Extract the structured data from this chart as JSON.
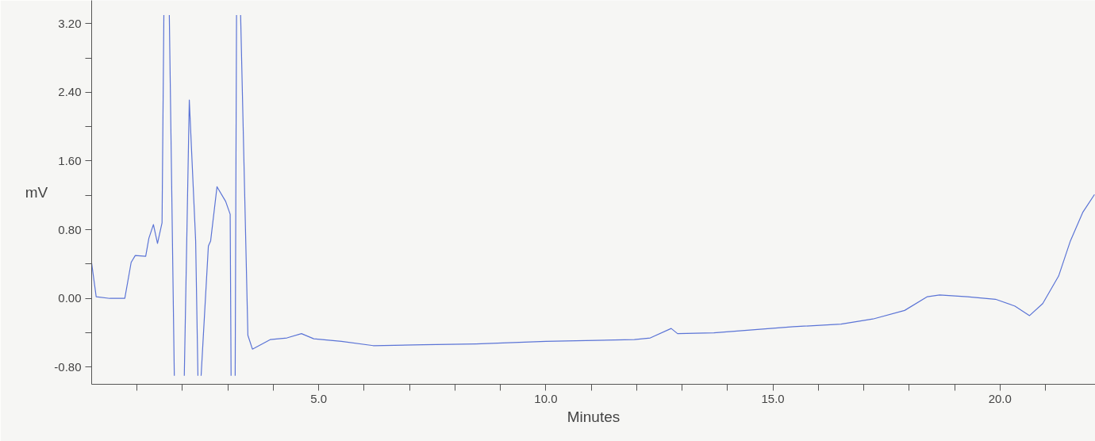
{
  "chart_data": {
    "type": "line",
    "xlabel": "Minutes",
    "ylabel": "mV",
    "x": [
      0,
      0.1,
      0.4,
      0.73,
      0.87,
      0.96,
      1.19,
      1.26,
      1.36,
      1.45,
      1.55,
      1.59,
      1.65,
      1.71,
      1.82,
      1.93,
      2.04,
      2.15,
      2.29,
      2.34,
      2.37,
      2.41,
      2.57,
      2.62,
      2.76,
      2.95,
      3.05,
      3.07,
      3.11,
      3.16,
      3.19,
      3.23,
      3.28,
      3.44,
      3.54,
      3.58,
      3.93,
      4.3,
      4.62,
      4.89,
      5.5,
      6.2,
      7.3,
      8.46,
      10.0,
      11.95,
      12.3,
      12.76,
      12.9,
      13.7,
      15.45,
      16.5,
      17.2,
      17.9,
      18.4,
      18.67,
      19.28,
      19.9,
      20.33,
      20.65,
      20.94,
      21.29,
      21.55,
      21.82,
      22.08
    ],
    "series": [
      {
        "color": "#5b74d6",
        "values": [
          0.41,
          0.02,
          0.0,
          0.0,
          0.42,
          0.5,
          0.49,
          0.7,
          0.86,
          0.64,
          0.88,
          3.3,
          null,
          3.3,
          -0.9,
          null,
          -0.9,
          2.31,
          0.67,
          -0.9,
          null,
          -0.9,
          0.61,
          0.67,
          1.3,
          1.13,
          0.98,
          -0.9,
          null,
          -0.9,
          3.3,
          null,
          3.3,
          -0.43,
          -0.59,
          -0.58,
          -0.48,
          -0.46,
          -0.41,
          -0.47,
          -0.5,
          -0.55,
          -0.54,
          -0.53,
          -0.5,
          -0.48,
          -0.46,
          -0.35,
          -0.41,
          -0.4,
          -0.33,
          -0.3,
          -0.24,
          -0.14,
          0.02,
          0.04,
          0.02,
          -0.01,
          -0.09,
          -0.2,
          -0.06,
          0.26,
          0.67,
          1.0,
          1.21
        ]
      }
    ],
    "xlim": [
      0,
      22.1
    ],
    "ylim": [
      -1.0,
      3.47
    ],
    "xticks": [
      {
        "value": 1,
        "label": null
      },
      {
        "value": 2,
        "label": null
      },
      {
        "value": 3,
        "label": null
      },
      {
        "value": 4,
        "label": null
      },
      {
        "value": 5,
        "label": "5.0"
      },
      {
        "value": 6,
        "label": null
      },
      {
        "value": 7,
        "label": null
      },
      {
        "value": 8,
        "label": null
      },
      {
        "value": 9,
        "label": null
      },
      {
        "value": 10,
        "label": "10.0"
      },
      {
        "value": 11,
        "label": null
      },
      {
        "value": 12,
        "label": null
      },
      {
        "value": 13,
        "label": null
      },
      {
        "value": 14,
        "label": null
      },
      {
        "value": 15,
        "label": "15.0"
      },
      {
        "value": 16,
        "label": null
      },
      {
        "value": 17,
        "label": null
      },
      {
        "value": 18,
        "label": null
      },
      {
        "value": 19,
        "label": null
      },
      {
        "value": 20,
        "label": "20.0"
      },
      {
        "value": 21,
        "label": null
      }
    ],
    "yticks": [
      {
        "value": -0.8,
        "label": "-0.80"
      },
      {
        "value": -0.4,
        "label": null
      },
      {
        "value": 0,
        "label": "0.00"
      },
      {
        "value": 0.4,
        "label": null
      },
      {
        "value": 0.8,
        "label": "0.80"
      },
      {
        "value": 1.2,
        "label": null
      },
      {
        "value": 1.6,
        "label": "1.60"
      },
      {
        "value": 2.0,
        "label": null
      },
      {
        "value": 2.4,
        "label": "2.40"
      },
      {
        "value": 2.8,
        "label": null
      },
      {
        "value": 3.2,
        "label": "3.20"
      }
    ],
    "grid": false,
    "line_style": "solid"
  }
}
